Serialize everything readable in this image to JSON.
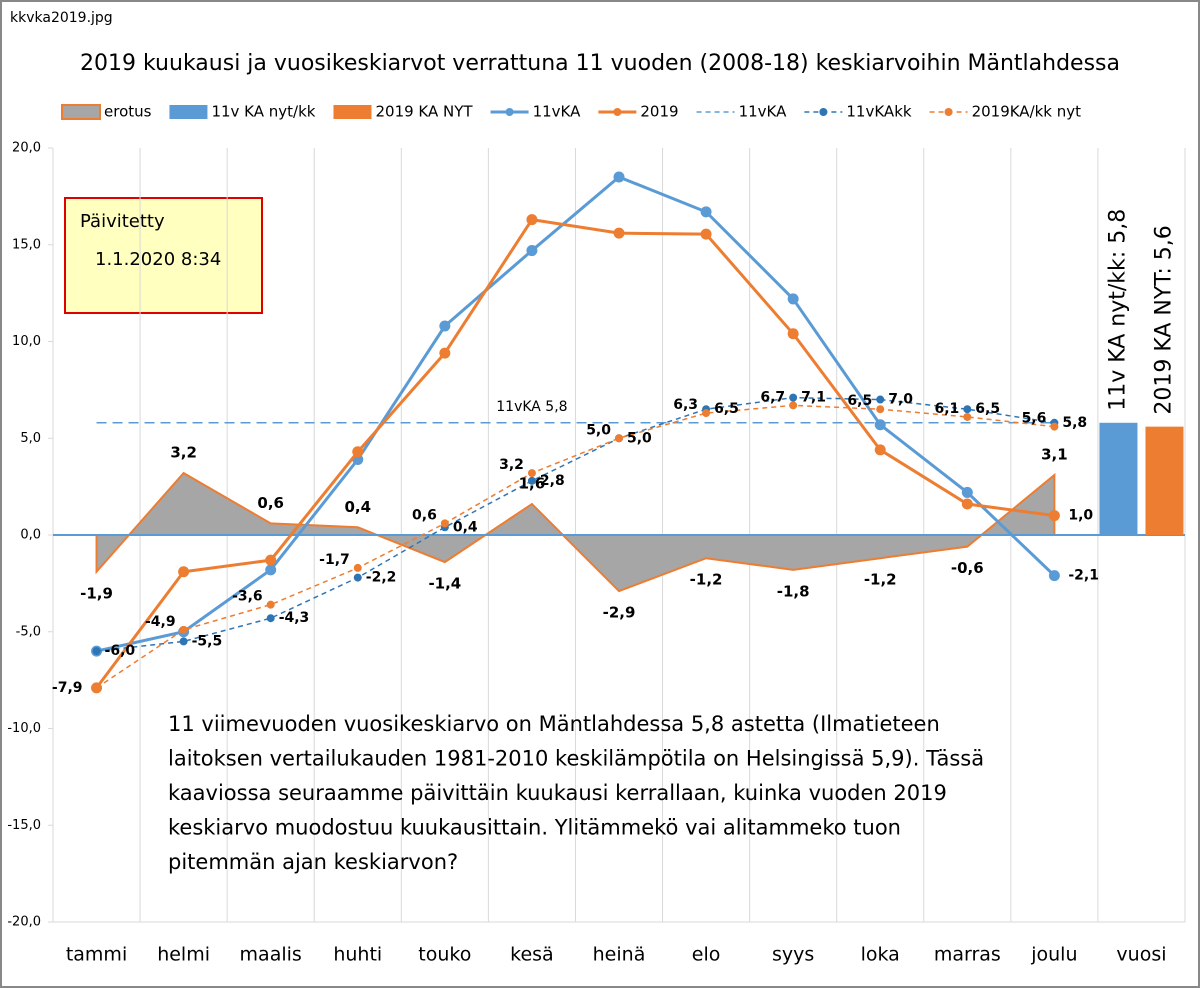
{
  "file_name": "kkvka2019.jpg",
  "note_box": {
    "line1": "Päivitetty",
    "line2": "1.1.2020 8:34"
  },
  "annotation": [
    "11 viimevuoden vuosikeskiarvo on Mäntlahdessa 5,8 astetta (Ilmatieteen",
    "laitoksen vertailukauden 1981-2010 keskilämpötila on Helsingissä 5,9). Tässä",
    "kaaviossa seuraamme päivittäin kuukausi kerrallaan, kuinka vuoden 2019",
    "keskiarvo muodostuu kuukausittain. Ylitämmekö vai alitammeko tuon",
    "pitemmän ajan keskiarvon?"
  ],
  "chart_data": {
    "type": "combo",
    "title": "2019 kuukausi ja vuosikeskiarvot verrattuna 11 vuoden (2008-18)  keskiarvoihin Mäntlahdessa",
    "categories": [
      "tammi",
      "helmi",
      "maalis",
      "huhti",
      "touko",
      "kesä",
      "heinä",
      "elo",
      "syys",
      "loka",
      "marras",
      "joulu",
      "vuosi"
    ],
    "ylim": [
      -20,
      20
    ],
    "yticks": [
      {
        "value": -20,
        "label": "-20,0"
      },
      {
        "value": -15,
        "label": "-15,0"
      },
      {
        "value": -10,
        "label": "-10,0"
      },
      {
        "value": -5,
        "label": "-5,0"
      },
      {
        "value": 0,
        "label": "0,0"
      },
      {
        "value": 5,
        "label": "5,0"
      },
      {
        "value": 10,
        "label": "10,0"
      },
      {
        "value": 15,
        "label": "15,0"
      },
      {
        "value": 20,
        "label": "20,0"
      }
    ],
    "legend": "top",
    "series": [
      {
        "name": "erotus",
        "kind": "area",
        "color": "#a6a6a6",
        "edge": "#ed7d31",
        "values": [
          -1.9,
          3.2,
          0.6,
          0.4,
          -1.4,
          1.6,
          -2.9,
          -1.2,
          -1.8,
          -1.2,
          -0.6,
          3.1,
          null
        ],
        "value_labels": [
          "-1,9",
          "3,2",
          "0,6",
          "0,4",
          "-1,4",
          "1,6",
          "-2,9",
          "-1,2",
          "-1,8",
          "-1,2",
          "-0,6",
          "3,1",
          null
        ]
      },
      {
        "name": "11v KA nyt/kk",
        "kind": "bar",
        "color": "#5b9bd5",
        "values": [
          null,
          null,
          null,
          null,
          null,
          null,
          null,
          null,
          null,
          null,
          null,
          null,
          5.8
        ],
        "value_labels": [
          null,
          null,
          null,
          null,
          null,
          null,
          null,
          null,
          null,
          null,
          null,
          null,
          "11v KA nyt/kk:  5,8"
        ]
      },
      {
        "name": "2019 KA NYT",
        "kind": "bar",
        "color": "#ed7d31",
        "values": [
          null,
          null,
          null,
          null,
          null,
          null,
          null,
          null,
          null,
          null,
          null,
          null,
          5.6
        ],
        "value_labels": [
          null,
          null,
          null,
          null,
          null,
          null,
          null,
          null,
          null,
          null,
          null,
          null,
          "2019 KA NYT:  5,6"
        ]
      },
      {
        "name": "11vKA",
        "kind": "line",
        "color": "#5b9bd5",
        "dashed": false,
        "markers": true,
        "values": [
          -6.0,
          -5.0,
          -1.8,
          3.9,
          10.8,
          14.7,
          18.5,
          16.7,
          12.2,
          5.7,
          2.2,
          -2.1,
          null
        ],
        "value_labels": [
          null,
          null,
          null,
          null,
          null,
          null,
          null,
          null,
          null,
          null,
          null,
          "-2,1",
          null
        ]
      },
      {
        "name": "2019",
        "kind": "line",
        "color": "#ed7d31",
        "dashed": false,
        "markers": true,
        "values": [
          -7.9,
          -1.9,
          -1.3,
          4.3,
          9.4,
          16.3,
          15.6,
          15.55,
          10.4,
          4.4,
          1.6,
          1.0,
          null
        ],
        "value_labels": [
          "-7,9",
          null,
          null,
          null,
          null,
          null,
          null,
          null,
          null,
          null,
          null,
          "1,0",
          null
        ]
      },
      {
        "name": "11vKA",
        "kind": "hline",
        "color": "#5b9bd5",
        "dashed": true,
        "value": 5.8,
        "label": "11vKA 5,8"
      },
      {
        "name": "11vKAkk",
        "kind": "line",
        "color": "#2e75b6",
        "dashed": true,
        "markers": true,
        "values": [
          -6.0,
          -5.5,
          -4.3,
          -2.2,
          0.4,
          2.8,
          5.0,
          6.5,
          7.1,
          7.0,
          6.5,
          5.8,
          null
        ],
        "value_labels": [
          "-6,0",
          "-5,5",
          "-4,3",
          "-2,2",
          "0,4",
          "2,8",
          "5,0",
          "6,5",
          "7,1",
          "7,0",
          "6,5",
          "5,8",
          null
        ]
      },
      {
        "name": "2019KA/kk nyt",
        "kind": "line",
        "color": "#ed7d31",
        "dashed": true,
        "markers": true,
        "values": [
          -7.9,
          -4.9,
          -3.6,
          -1.7,
          0.6,
          3.2,
          5.0,
          6.3,
          6.7,
          6.5,
          6.1,
          5.6,
          null
        ],
        "value_labels": [
          null,
          "-4,9",
          "-3,6",
          "-1,7",
          "0,6",
          "3,2",
          "5,0",
          "6,3",
          "6,7",
          "6,5",
          "6,1",
          "5,6",
          null
        ]
      }
    ]
  }
}
